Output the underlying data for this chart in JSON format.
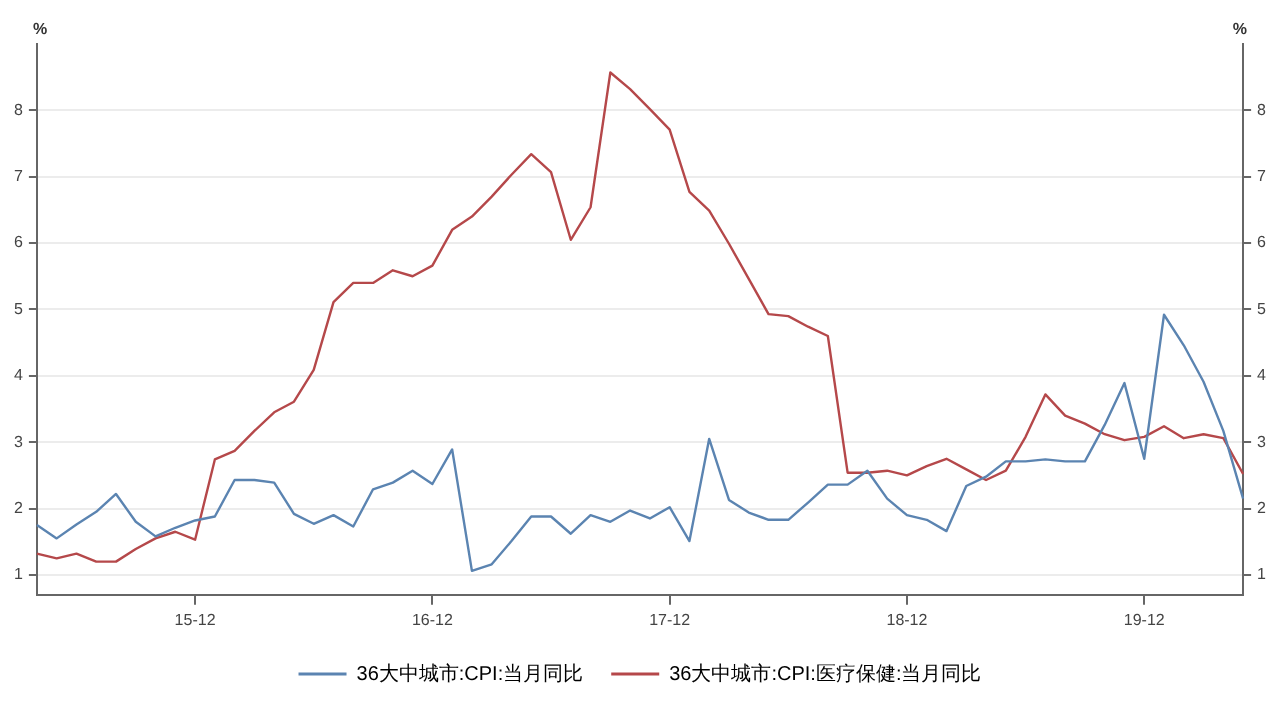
{
  "chart_data": {
    "type": "line",
    "categories": [
      null,
      null,
      null,
      null,
      null,
      null,
      null,
      null,
      "15-12",
      null,
      null,
      null,
      null,
      null,
      null,
      null,
      null,
      null,
      null,
      null,
      "16-12",
      null,
      null,
      null,
      null,
      null,
      null,
      null,
      null,
      null,
      null,
      null,
      "17-12",
      null,
      null,
      null,
      null,
      null,
      null,
      null,
      null,
      null,
      null,
      null,
      "18-12",
      null,
      null,
      null,
      null,
      null,
      null,
      null,
      null,
      null,
      null,
      null,
      "19-12",
      null,
      null,
      null,
      null,
      null
    ],
    "series": [
      {
        "name": "36大中城市:CPI:当月同比",
        "color": "#5b84b1",
        "values": [
          1.75,
          1.55,
          1.76,
          1.95,
          2.22,
          1.8,
          1.58,
          1.71,
          1.82,
          1.88,
          2.43,
          2.43,
          2.39,
          1.92,
          1.77,
          1.9,
          1.73,
          2.29,
          2.39,
          2.57,
          2.37,
          2.89,
          1.06,
          1.16,
          1.51,
          1.88,
          1.88,
          1.62,
          1.9,
          1.8,
          1.97,
          1.85,
          2.02,
          1.51,
          3.05,
          2.13,
          1.94,
          1.83,
          1.83,
          2.09,
          2.36,
          2.36,
          2.57,
          2.15,
          1.9,
          1.83,
          1.66,
          2.34,
          2.48,
          2.71,
          2.71,
          2.74,
          2.71,
          2.71,
          3.26,
          3.89,
          2.75,
          4.92,
          4.46,
          3.91,
          3.17,
          2.15
        ]
      },
      {
        "name": "36大中城市:CPI:医疗保健:当月同比",
        "color": "#b5484a",
        "values": [
          1.32,
          1.25,
          1.32,
          1.2,
          1.2,
          1.39,
          1.55,
          1.65,
          1.53,
          2.74,
          2.87,
          3.17,
          3.45,
          3.61,
          4.09,
          5.11,
          5.4,
          5.4,
          5.59,
          5.5,
          5.66,
          6.2,
          6.4,
          6.7,
          7.03,
          7.34,
          7.07,
          6.05,
          6.54,
          8.57,
          8.32,
          8.02,
          7.71,
          6.77,
          6.49,
          5.99,
          5.46,
          4.93,
          4.9,
          4.74,
          4.6,
          2.54,
          2.54,
          2.57,
          2.5,
          2.64,
          2.75,
          2.59,
          2.43,
          2.57,
          3.08,
          3.72,
          3.4,
          3.28,
          3.12,
          3.03,
          3.08,
          3.24,
          3.06,
          3.12,
          3.06,
          2.52
        ]
      }
    ],
    "ylabel": "%",
    "y2label": "%",
    "ylim": [
      0.7,
      9
    ],
    "yticks": [
      1,
      2,
      3,
      4,
      5,
      6,
      7,
      8
    ],
    "y2lim": [
      0.7,
      9
    ],
    "y2ticks": [
      1,
      2,
      3,
      4,
      5,
      6,
      7,
      8
    ],
    "grid": "y",
    "legend": "bottom",
    "marker": "none",
    "line_style": "solid"
  }
}
